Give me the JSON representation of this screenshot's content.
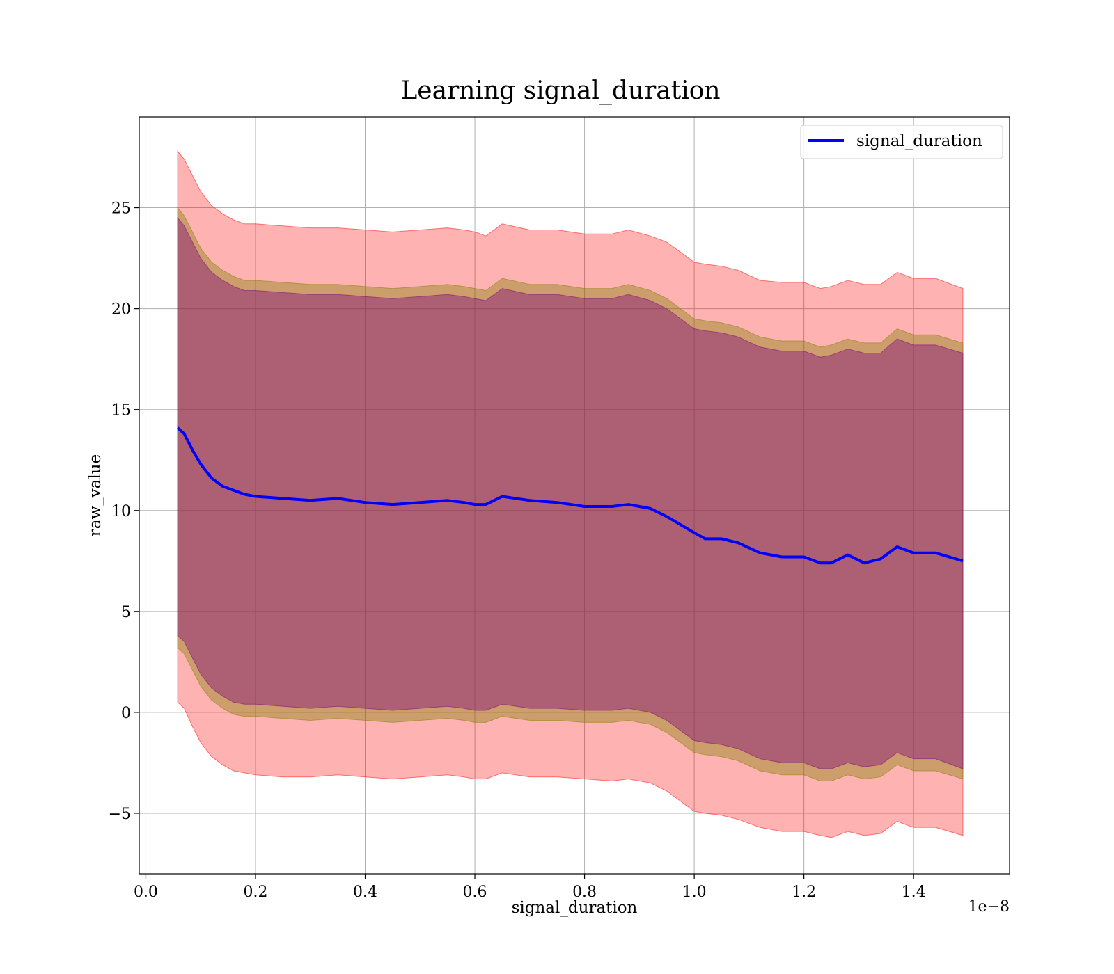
{
  "chart_data": {
    "type": "line",
    "title": "Learning signal_duration",
    "xlabel": "signal_duration",
    "ylabel": "raw_value",
    "x_offset_label": "1e−8",
    "xlim": [
      -0.012,
      1.575
    ],
    "ylim": [
      -8,
      29.5
    ],
    "x_ticks": [
      0.0,
      0.2,
      0.4,
      0.6,
      0.8,
      1.0,
      1.2,
      1.4
    ],
    "x_tick_labels": [
      "0.0",
      "0.2",
      "0.4",
      "0.6",
      "0.8",
      "1.0",
      "1.2",
      "1.4"
    ],
    "y_ticks": [
      -5,
      0,
      5,
      10,
      15,
      20,
      25
    ],
    "y_tick_labels": [
      "−5",
      "0",
      "5",
      "10",
      "15",
      "20",
      "25"
    ],
    "grid": true,
    "legend_position": "top-right",
    "x": [
      0.058,
      0.07,
      0.085,
      0.1,
      0.12,
      0.14,
      0.16,
      0.18,
      0.2,
      0.25,
      0.3,
      0.35,
      0.4,
      0.45,
      0.5,
      0.55,
      0.58,
      0.6,
      0.62,
      0.65,
      0.7,
      0.75,
      0.8,
      0.85,
      0.88,
      0.92,
      0.95,
      1.0,
      1.02,
      1.05,
      1.08,
      1.12,
      1.16,
      1.2,
      1.23,
      1.25,
      1.28,
      1.31,
      1.34,
      1.37,
      1.4,
      1.44,
      1.49
    ],
    "series": [
      {
        "name": "signal_duration",
        "color": "#0000ff",
        "values": [
          14.1,
          13.8,
          13.0,
          12.3,
          11.6,
          11.2,
          11.0,
          10.8,
          10.7,
          10.6,
          10.5,
          10.6,
          10.4,
          10.3,
          10.4,
          10.5,
          10.4,
          10.3,
          10.3,
          10.7,
          10.5,
          10.4,
          10.2,
          10.2,
          10.3,
          10.1,
          9.7,
          8.9,
          8.6,
          8.6,
          8.4,
          7.9,
          7.7,
          7.7,
          7.4,
          7.4,
          7.8,
          7.4,
          7.6,
          8.2,
          7.9,
          7.9,
          7.5
        ]
      }
    ],
    "bands": [
      {
        "color": "#ff0000",
        "opacity": 0.3,
        "upper": [
          27.8,
          27.4,
          26.6,
          25.8,
          25.1,
          24.7,
          24.4,
          24.2,
          24.2,
          24.1,
          24.0,
          24.0,
          23.9,
          23.8,
          23.9,
          24.0,
          23.9,
          23.8,
          23.6,
          24.2,
          23.9,
          23.9,
          23.7,
          23.7,
          23.9,
          23.6,
          23.3,
          22.3,
          22.2,
          22.1,
          21.9,
          21.4,
          21.3,
          21.3,
          21.0,
          21.1,
          21.4,
          21.2,
          21.2,
          21.8,
          21.5,
          21.5,
          21.0
        ],
        "lower": [
          0.5,
          0.2,
          -0.7,
          -1.5,
          -2.2,
          -2.6,
          -2.9,
          -3.0,
          -3.1,
          -3.2,
          -3.2,
          -3.1,
          -3.2,
          -3.3,
          -3.2,
          -3.1,
          -3.2,
          -3.3,
          -3.3,
          -3.0,
          -3.2,
          -3.2,
          -3.3,
          -3.4,
          -3.3,
          -3.5,
          -3.9,
          -4.9,
          -5.0,
          -5.1,
          -5.3,
          -5.7,
          -5.9,
          -5.9,
          -6.1,
          -6.2,
          -5.9,
          -6.1,
          -6.0,
          -5.4,
          -5.7,
          -5.7,
          -6.1
        ]
      },
      {
        "color": "#808000",
        "opacity": 0.4,
        "upper": [
          25.0,
          24.6,
          23.8,
          23.0,
          22.3,
          21.9,
          21.6,
          21.4,
          21.4,
          21.3,
          21.2,
          21.2,
          21.1,
          21.0,
          21.1,
          21.2,
          21.1,
          21.0,
          20.9,
          21.5,
          21.2,
          21.2,
          21.0,
          21.0,
          21.2,
          20.9,
          20.5,
          19.5,
          19.4,
          19.3,
          19.1,
          18.6,
          18.4,
          18.4,
          18.1,
          18.2,
          18.5,
          18.3,
          18.3,
          19.0,
          18.7,
          18.7,
          18.3
        ],
        "lower": [
          3.2,
          2.9,
          2.1,
          1.3,
          0.6,
          0.2,
          -0.1,
          -0.2,
          -0.2,
          -0.3,
          -0.4,
          -0.3,
          -0.4,
          -0.5,
          -0.4,
          -0.3,
          -0.4,
          -0.5,
          -0.5,
          -0.2,
          -0.4,
          -0.4,
          -0.5,
          -0.5,
          -0.4,
          -0.6,
          -1.0,
          -2.0,
          -2.1,
          -2.2,
          -2.4,
          -2.9,
          -3.1,
          -3.1,
          -3.4,
          -3.4,
          -3.1,
          -3.3,
          -3.2,
          -2.6,
          -2.9,
          -2.9,
          -3.3
        ]
      },
      {
        "color": "#800080",
        "opacity": 0.4,
        "upper": [
          24.5,
          24.1,
          23.3,
          22.5,
          21.8,
          21.4,
          21.1,
          20.9,
          20.9,
          20.8,
          20.7,
          20.7,
          20.6,
          20.5,
          20.6,
          20.7,
          20.6,
          20.5,
          20.4,
          21.0,
          20.7,
          20.7,
          20.5,
          20.5,
          20.7,
          20.4,
          20.0,
          19.0,
          18.9,
          18.8,
          18.6,
          18.1,
          17.9,
          17.9,
          17.6,
          17.7,
          18.0,
          17.8,
          17.8,
          18.5,
          18.2,
          18.2,
          17.8
        ],
        "lower": [
          3.8,
          3.5,
          2.7,
          1.9,
          1.2,
          0.8,
          0.5,
          0.4,
          0.4,
          0.3,
          0.2,
          0.3,
          0.2,
          0.1,
          0.2,
          0.3,
          0.2,
          0.1,
          0.1,
          0.4,
          0.2,
          0.2,
          0.1,
          0.1,
          0.2,
          0.0,
          -0.4,
          -1.4,
          -1.5,
          -1.6,
          -1.8,
          -2.3,
          -2.5,
          -2.5,
          -2.8,
          -2.8,
          -2.5,
          -2.7,
          -2.6,
          -2.0,
          -2.3,
          -2.3,
          -2.8
        ]
      }
    ]
  }
}
